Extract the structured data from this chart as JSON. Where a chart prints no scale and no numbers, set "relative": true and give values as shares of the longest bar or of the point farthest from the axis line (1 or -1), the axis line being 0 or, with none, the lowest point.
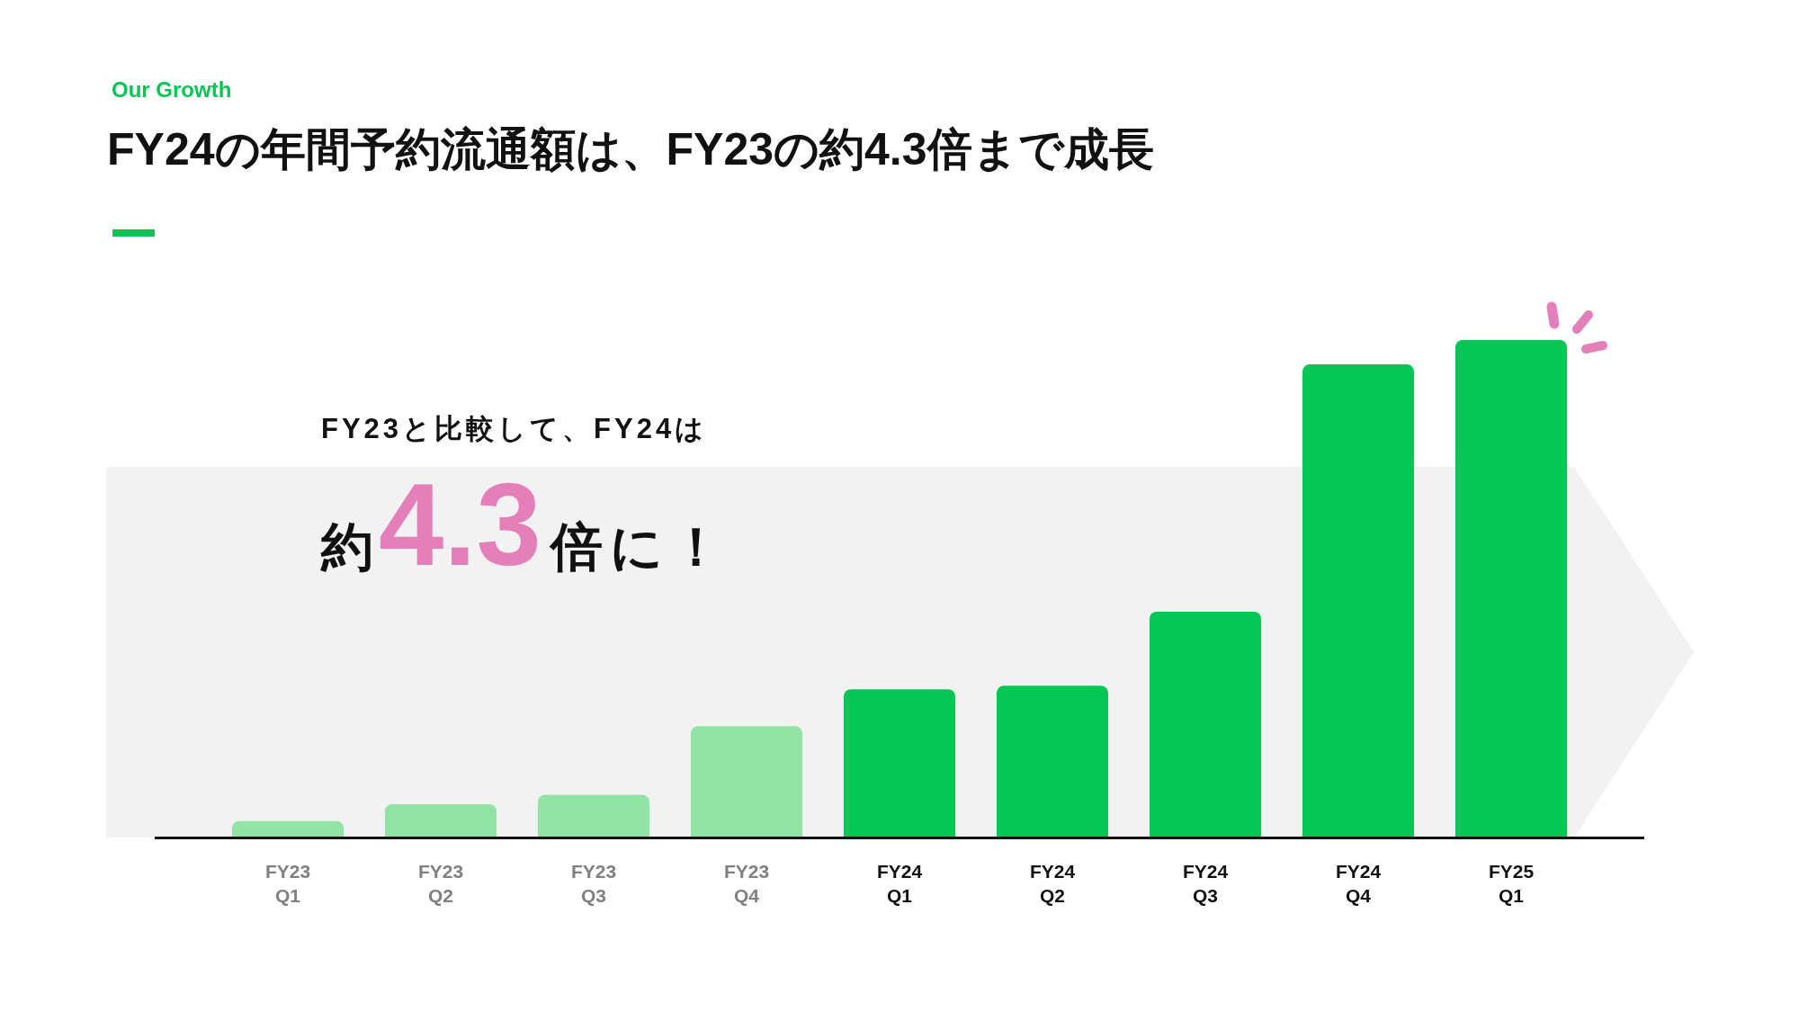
{
  "chart_data": {
    "type": "bar",
    "title": "FY24の年間予約流通額は、FY23の約4.3倍まで成長",
    "subtitle": "Our Growth",
    "categories": [
      "FY23 Q1",
      "FY23 Q2",
      "FY23 Q3",
      "FY23 Q4",
      "FY24 Q1",
      "FY24 Q2",
      "FY24 Q3",
      "FY24 Q4",
      "FY25 Q1"
    ],
    "values": [
      0.033,
      0.067,
      0.086,
      0.224,
      0.298,
      0.305,
      0.454,
      0.951,
      1
    ],
    "colors": [
      "#93e3a7",
      "#93e3a7",
      "#93e3a7",
      "#93e3a7",
      "#06c755",
      "#06c755",
      "#06c755",
      "#06c755",
      "#06c755"
    ],
    "relative": true,
    "bands": [
      {
        "axis": "y",
        "from": 0,
        "to": 0.745,
        "color": "#f2f2f2"
      }
    ],
    "annotations": [
      "FY23と比較して、FY24は",
      "約4.3倍に！"
    ],
    "grid": false,
    "legend": false
  }
}
